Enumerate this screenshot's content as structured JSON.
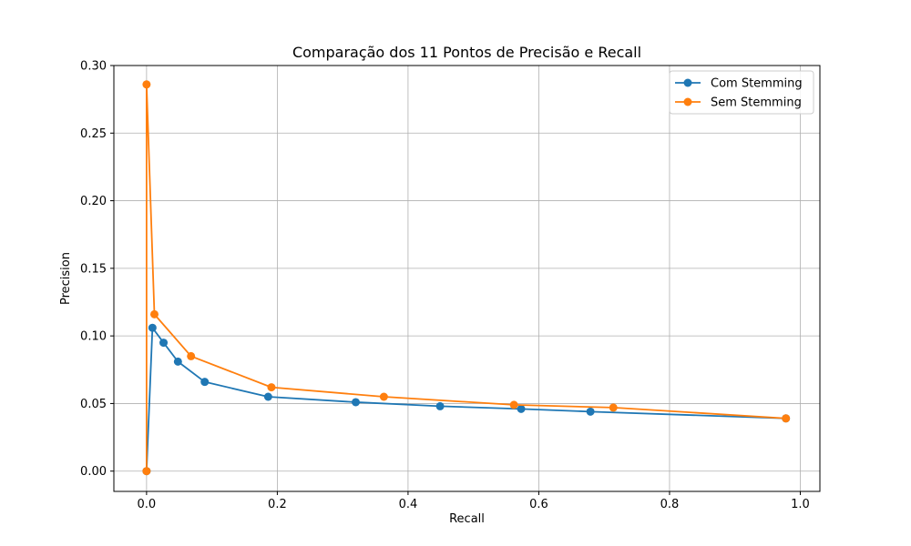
{
  "chart_data": {
    "type": "line",
    "title": "Comparação dos 11 Pontos de Precisão e Recall",
    "xlabel": "Recall",
    "ylabel": "Precision",
    "xlim": [
      -0.05,
      1.03
    ],
    "ylim": [
      -0.015,
      0.3
    ],
    "xticks": [
      0.0,
      0.2,
      0.4,
      0.6,
      0.8,
      1.0
    ],
    "xtick_labels": [
      "0.0",
      "0.2",
      "0.4",
      "0.6",
      "0.8",
      "1.0"
    ],
    "yticks": [
      0.0,
      0.05,
      0.1,
      0.15,
      0.2,
      0.25,
      0.3
    ],
    "ytick_labels": [
      "0.00",
      "0.05",
      "0.10",
      "0.15",
      "0.20",
      "0.25",
      "0.30"
    ],
    "grid": true,
    "legend_position": "top-right",
    "series": [
      {
        "name": "Com Stemming",
        "color": "#1f77b4",
        "marker": "circle",
        "x": [
          0.0,
          0.009,
          0.026,
          0.048,
          0.089,
          0.186,
          0.32,
          0.449,
          0.573,
          0.679,
          0.978
        ],
        "y": [
          0.0,
          0.106,
          0.095,
          0.081,
          0.066,
          0.055,
          0.051,
          0.048,
          0.046,
          0.044,
          0.039
        ]
      },
      {
        "name": "Sem Stemming",
        "color": "#ff7f0e",
        "marker": "circle",
        "x": [
          0.0,
          0.0,
          0.012,
          0.068,
          0.191,
          0.363,
          0.562,
          0.714,
          0.978
        ],
        "y": [
          0.0,
          0.286,
          0.116,
          0.085,
          0.062,
          0.055,
          0.049,
          0.047,
          0.039
        ]
      }
    ]
  }
}
